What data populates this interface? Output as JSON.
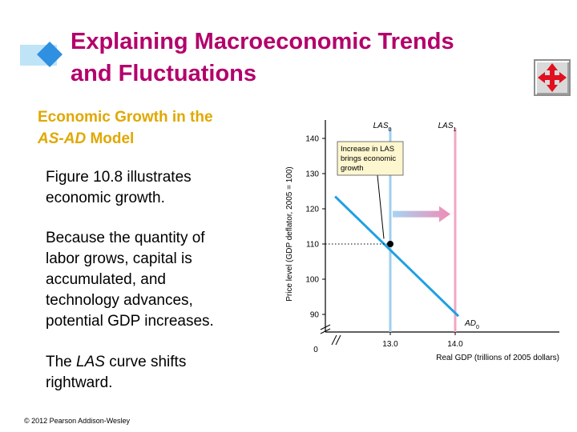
{
  "slide": {
    "title_lines": [
      "Explaining Macroeconomic Trends",
      "and Fluctuations"
    ],
    "subhead_line1": "Economic Growth in the",
    "subhead_italic": "AS-AD",
    "subhead_rest": " Model",
    "para1_lines": [
      "Figure 10.8 illustrates",
      "economic growth."
    ],
    "para2_lines": [
      "Because the quantity of",
      "labor grows, capital is",
      "accumulated, and",
      "technology advances,",
      "potential GDP increases."
    ],
    "para3_line1_pre": "The ",
    "para3_line1_italic": "LAS",
    "para3_line1_post": " curve shifts",
    "para3_line2": "rightward.",
    "copyright": "© 2012 Pearson Addison-Wesley",
    "colors": {
      "title": "#b3006b",
      "subhead": "#e0a800",
      "accent_blue": "#2f8fe0"
    },
    "nav_icon": "four-way-arrows-icon"
  },
  "chart_data": {
    "type": "line",
    "ylabel": "Price level (GDP deflator, 2005 = 100)",
    "xlabel": "Real GDP (trillions of 2005 dollars)",
    "y_ticks": [
      90,
      100,
      110,
      120,
      130,
      140
    ],
    "x_ticks": [
      "13.0",
      "14.0"
    ],
    "origin_label": "0",
    "ylim": [
      85,
      145
    ],
    "xlim": [
      12.0,
      14.25
    ],
    "series": [
      {
        "name": "AD0",
        "label_main": "AD",
        "label_sub": "0",
        "color": "#1fa0e3",
        "x": [
          12.15,
          14.05
        ],
        "y": [
          123.5,
          89.5
        ]
      },
      {
        "name": "LAS0",
        "label_main": "LAS",
        "label_sub": "0",
        "color": "#9fcfee",
        "x": [
          13.0,
          13.0
        ],
        "vertical": true
      },
      {
        "name": "LAS1",
        "label_main": "LAS",
        "label_sub": "1",
        "color": "#f1a7c3",
        "x": [
          14.0,
          14.0
        ],
        "vertical": true
      }
    ],
    "equilibrium": {
      "x": 13.0,
      "y": 110
    },
    "annotation_lines": [
      "Increase in LAS",
      "brings economic",
      "growth"
    ]
  }
}
